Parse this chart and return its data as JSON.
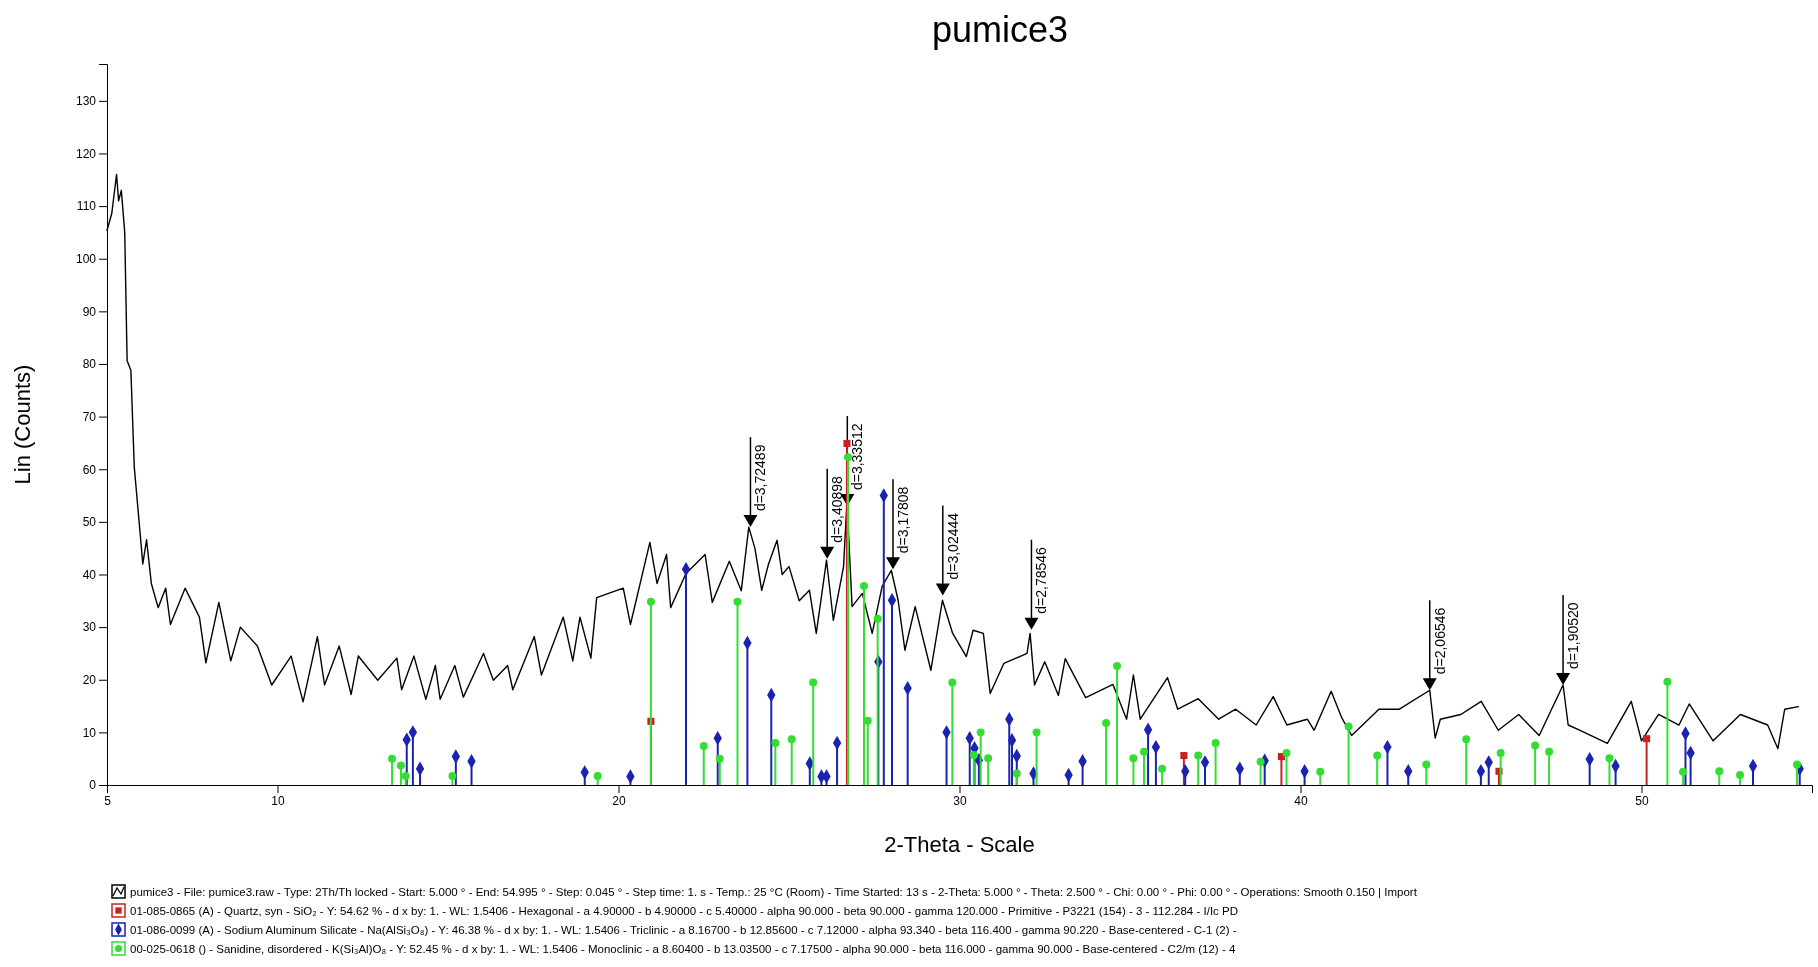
{
  "chart_data": {
    "type": "line",
    "title": "pumice3",
    "xlabel": "2-Theta - Scale",
    "ylabel": "Lin (Counts)",
    "xlim": [
      5,
      55
    ],
    "ylim": [
      0,
      137
    ],
    "xticks": [
      5,
      10,
      20,
      30,
      40,
      50
    ],
    "yticks": [
      0,
      10,
      20,
      30,
      40,
      50,
      60,
      70,
      80,
      90,
      100,
      110,
      120,
      130
    ],
    "legend": "bottom",
    "series": [
      {
        "name": "pumice3 - File: pumice3.raw - Type: 2Th/Th locked - Start: 5.000 ° - End: 54.995 ° - Step: 0.045 ° - Step time: 1. s - Temp.: 25 °C (Room) - Time Started: 13 s - 2-Theta: 5.000 ° - Theta: 2.500 ° - Chi: 0.00 ° - Phi: 0.00 ° - Operations: Smooth 0.150 | Import",
        "color": "#000000",
        "marker": "none",
        "x": [
          5.0,
          5.14,
          5.28,
          5.34,
          5.42,
          5.52,
          5.59,
          5.7,
          5.8,
          5.95,
          6.05,
          6.16,
          6.3,
          6.5,
          6.72,
          6.86,
          7.29,
          7.71,
          7.9,
          8.28,
          8.63,
          8.91,
          9.41,
          9.83,
          10.4,
          10.75,
          11.17,
          11.38,
          11.81,
          12.16,
          12.37,
          12.94,
          13.5,
          13.64,
          14.0,
          14.35,
          14.63,
          14.77,
          15.2,
          15.45,
          16.04,
          16.33,
          16.75,
          16.9,
          17.53,
          17.74,
          18.38,
          18.66,
          18.87,
          19.19,
          19.36,
          20.14,
          20.35,
          20.92,
          21.13,
          21.41,
          21.53,
          21.98,
          22.54,
          22.75,
          23.25,
          23.6,
          23.82,
          24.0,
          24.2,
          24.4,
          24.65,
          24.8,
          25.0,
          25.3,
          25.6,
          25.8,
          26.1,
          26.3,
          26.6,
          26.7,
          26.85,
          27.15,
          27.44,
          27.73,
          28.0,
          28.2,
          28.4,
          28.7,
          29.16,
          29.5,
          29.8,
          30.2,
          30.4,
          30.7,
          30.9,
          31.3,
          31.98,
          32.07,
          32.2,
          32.5,
          32.9,
          33.1,
          33.7,
          34.5,
          34.9,
          35.1,
          35.3,
          36.1,
          36.4,
          37.0,
          37.6,
          38.1,
          38.7,
          39.2,
          39.6,
          40.2,
          40.4,
          40.9,
          41.2,
          41.5,
          42.3,
          42.9,
          43.79,
          43.95,
          44.1,
          44.7,
          45.3,
          45.8,
          46.4,
          47.0,
          47.7,
          47.85,
          48.2,
          49.0,
          49.7,
          50.0,
          50.5,
          51.1,
          51.4,
          52.1,
          52.9,
          53.7,
          54.0,
          54.2,
          54.6
        ],
        "values": [
          105.4,
          108.6,
          116,
          111,
          113,
          105,
          80.6,
          78.8,
          60.4,
          49.4,
          42,
          46.6,
          38.3,
          33.7,
          37.4,
          30.5,
          37.4,
          31.9,
          23.2,
          34.7,
          23.6,
          30,
          26.4,
          19,
          24.5,
          15.8,
          28.2,
          19,
          26.4,
          17.2,
          24.5,
          19.9,
          24.1,
          18.1,
          24.5,
          16.3,
          22.7,
          16.3,
          22.7,
          16.7,
          25,
          19.9,
          22.7,
          18.1,
          28.2,
          20.9,
          31.9,
          23.6,
          31.9,
          24.1,
          35.6,
          37.4,
          30.5,
          46.1,
          38.3,
          43.8,
          33.7,
          40.2,
          43.8,
          34.7,
          42.5,
          36.9,
          49,
          45,
          37,
          42,
          46.5,
          40,
          41.5,
          35,
          37,
          28.8,
          42.7,
          31.3,
          41.5,
          54,
          33.9,
          36.4,
          28.8,
          37.7,
          40.8,
          35.1,
          25.6,
          33.9,
          21.8,
          35.1,
          28.8,
          24.4,
          29.4,
          28.8,
          17.4,
          23.1,
          25,
          28.8,
          19,
          23.4,
          17,
          24,
          16.6,
          19.1,
          12.5,
          20.9,
          12.5,
          20.4,
          14.4,
          16.4,
          12.5,
          14.4,
          11.4,
          16.8,
          11.4,
          12.5,
          10.4,
          17.8,
          12.9,
          9.4,
          14.4,
          14.4,
          18,
          8.9,
          12.5,
          13.4,
          15.9,
          10.4,
          13.4,
          9.4,
          19,
          11.4,
          10.4,
          7.9,
          15.9,
          8.4,
          13.4,
          11.4,
          15.4,
          8.4,
          13.4,
          11.4,
          6.9,
          14.4,
          14.9
        ]
      },
      {
        "type": "lollipop",
        "name": "01-085-0865 (A) - Quartz, syn - SiO₂ - Y: 54.62 % - d x by: 1. - WL: 1.5406 - Hexagonal - a 4.90000 - b 4.90000 - c 5.40000 - alpha 90.000 - beta 90.000 - gamma 120.000 - Primitive - P3221 (154) - 3 - 112.284 - I/Ic PD",
        "color": "#cc2020",
        "marker": "square",
        "x": [
          20.95,
          26.7,
          36.58,
          39.44,
          45.82,
          50.15
        ],
        "values": [
          12.1,
          64.9,
          5.6,
          5.4,
          2.6,
          8.8
        ]
      },
      {
        "type": "lollipop",
        "name": "01-086-0099 (A) - Sodium Aluminum Silicate - Na(AlSi₃O₈) - Y: 46.38 % - d x by: 1. - WL: 1.5406 - Triclinic - a 8.16700 - b 12.85600 - c 7.12000 - alpha 93.340 - beta 116.400 - gamma 90.220 - Base-centered - C-1 (2) -",
        "color": "#1a22b0",
        "marker": "diamond",
        "x": [
          13.79,
          13.97,
          14.18,
          15.23,
          15.69,
          19.01,
          20.35,
          21.98,
          22.91,
          23.78,
          24.48,
          25.61,
          25.95,
          26.1,
          26.41,
          27.62,
          27.78,
          28.02,
          28.48,
          29.62,
          30.3,
          30.44,
          30.57,
          31.46,
          31.54,
          31.68,
          32.17,
          33.2,
          33.61,
          35.53,
          35.76,
          36.62,
          37.2,
          38.22,
          38.95,
          40.12,
          42.55,
          43.16,
          45.29,
          45.52,
          48.48,
          49.24,
          51.29,
          51.44,
          53.27,
          54.64
        ],
        "values": [
          8.6,
          10,
          3.1,
          5.4,
          4.5,
          2.4,
          1.6,
          41,
          8.9,
          27,
          17.1,
          4.1,
          1.6,
          1.6,
          8,
          23.4,
          55,
          35.1,
          18.4,
          10,
          8.9,
          7,
          4.7,
          12.5,
          8.5,
          5.5,
          2.2,
          1.9,
          4.5,
          10.5,
          7.2,
          2.6,
          4.3,
          3.1,
          4.6,
          2.6,
          7.2,
          2.6,
          2.6,
          4.3,
          4.9,
          3.6,
          9.8,
          6.1,
          3.6,
          3.1
        ]
      },
      {
        "type": "lollipop",
        "name": "00-025-0618 () - Sanidine, disordered - K(Si₃Al)O₈ - Y: 52.45 % - d x by: 1. - WL: 1.5406 - Monoclinic - a 8.60400 - b 13.03500 - c 7.17500 - alpha 90.000 - beta 116.000 - gamma 90.000 - Base-centered - C2/m (12) - 4",
        "color": "#33dd33",
        "marker": "circle",
        "x": [
          13.36,
          13.62,
          13.76,
          15.13,
          19.39,
          20.95,
          22.5,
          22.97,
          23.49,
          24.6,
          25.08,
          25.71,
          26.73,
          27.2,
          27.31,
          27.6,
          29.79,
          30.42,
          30.62,
          30.84,
          31.68,
          32.26,
          34.3,
          34.62,
          35.1,
          35.41,
          35.94,
          37.0,
          37.51,
          38.83,
          39.59,
          40.58,
          41.41,
          42.25,
          43.69,
          44.86,
          45.87,
          46.88,
          47.29,
          49.06,
          50.76,
          51.22,
          52.28,
          52.89,
          54.56
        ],
        "values": [
          5,
          3.7,
          1.7,
          1.7,
          1.7,
          34.8,
          7.4,
          5,
          34.8,
          8,
          8.7,
          19.5,
          62.3,
          37.8,
          12.2,
          31.6,
          19.5,
          5.7,
          10,
          5.1,
          2.2,
          10,
          11.8,
          22.6,
          5.1,
          6.3,
          3.1,
          5.6,
          8,
          4.4,
          6.1,
          2.5,
          11.1,
          5.6,
          3.9,
          8.7,
          6.1,
          7.5,
          6.3,
          5.1,
          19.6,
          2.5,
          2.6,
          1.9,
          3.9
        ]
      }
    ],
    "annotations": [
      {
        "text": "d=3,72489",
        "x": 23.87,
        "y": 49
      },
      {
        "text": "d=3,40898",
        "x": 26.12,
        "y": 43
      },
      {
        "text": "d=3,33512",
        "x": 26.71,
        "y": 53
      },
      {
        "text": "d=3,17808",
        "x": 28.05,
        "y": 41
      },
      {
        "text": "d=3,02444",
        "x": 29.51,
        "y": 36
      },
      {
        "text": "d=2,78546",
        "x": 32.11,
        "y": 29.5
      },
      {
        "text": "d=2,06546",
        "x": 43.79,
        "y": 18
      },
      {
        "text": "d=1,90520",
        "x": 47.7,
        "y": 19
      }
    ]
  }
}
